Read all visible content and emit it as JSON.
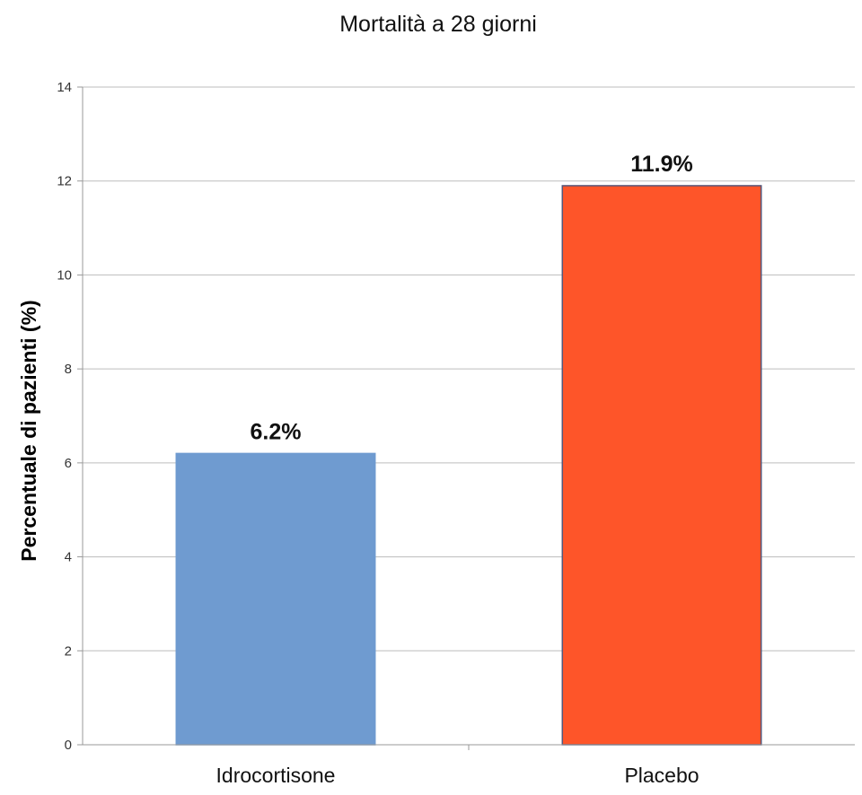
{
  "chart_data": {
    "type": "bar",
    "title": "Mortalità a 28 giorni",
    "xlabel": "",
    "ylabel": "Percentuale di pazienti (%)",
    "ylim": [
      0,
      14
    ],
    "yticks": [
      0,
      2,
      4,
      6,
      8,
      10,
      12,
      14
    ],
    "grid": true,
    "legend": "none",
    "categories": [
      "Idrocortisone",
      "Placebo"
    ],
    "values": [
      6.2,
      11.9
    ],
    "data_labels": [
      "6.2%",
      "11.9%"
    ],
    "colors": [
      "#6f9bd0",
      "#fe5529"
    ],
    "border_colors": [
      "#6f9bd0",
      "#555577"
    ]
  }
}
